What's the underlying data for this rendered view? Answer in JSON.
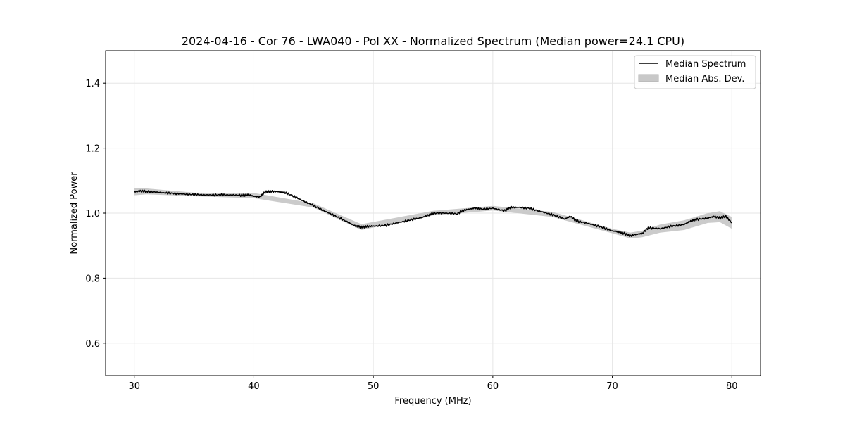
{
  "chart_data": {
    "type": "line",
    "title": "2024-04-16 - Cor 76 - LWA040 - Pol XX - Normalized Spectrum (Median power=24.1 CPU)",
    "xlabel": "Frequency (MHz)",
    "ylabel": "Normalized Power",
    "xlim": [
      27.6,
      82.4
    ],
    "ylim": [
      0.5,
      1.5
    ],
    "xticks": [
      30,
      40,
      50,
      60,
      70,
      80
    ],
    "yticks": [
      0.6,
      0.8,
      1.0,
      1.2,
      1.4
    ],
    "grid": true,
    "legend_position": "top-right",
    "legend": [
      "Median Spectrum",
      "Median Abs. Dev."
    ],
    "series": [
      {
        "name": "Median Spectrum",
        "color": "#000000",
        "x": [
          30,
          30.5,
          31,
          32,
          33,
          34,
          35,
          36,
          37,
          38,
          39,
          39.5,
          40,
          40.5,
          41,
          41.5,
          42,
          42.5,
          43,
          44,
          45,
          46,
          47,
          48,
          48.5,
          49,
          49.5,
          50,
          51,
          52,
          53,
          54,
          54.5,
          55,
          56,
          57,
          57.5,
          58,
          58.5,
          59,
          60,
          61,
          61.5,
          62,
          63,
          64,
          65,
          66,
          66.5,
          67,
          68,
          69,
          70,
          70.5,
          71,
          71.5,
          72,
          72.5,
          73,
          74,
          75,
          76,
          76.5,
          77,
          78,
          78.5,
          79,
          79.5,
          80
        ],
        "y": [
          1.065,
          1.068,
          1.067,
          1.064,
          1.061,
          1.059,
          1.057,
          1.056,
          1.056,
          1.056,
          1.055,
          1.056,
          1.052,
          1.05,
          1.066,
          1.067,
          1.066,
          1.064,
          1.058,
          1.04,
          1.023,
          1.005,
          0.988,
          0.97,
          0.96,
          0.957,
          0.959,
          0.96,
          0.962,
          0.97,
          0.978,
          0.986,
          0.992,
          1.0,
          1.0,
          0.998,
          1.008,
          1.012,
          1.016,
          1.012,
          1.015,
          1.007,
          1.018,
          1.018,
          1.015,
          1.005,
          0.995,
          0.982,
          0.99,
          0.976,
          0.968,
          0.958,
          0.945,
          0.943,
          0.937,
          0.93,
          0.935,
          0.937,
          0.955,
          0.952,
          0.96,
          0.965,
          0.975,
          0.98,
          0.985,
          0.99,
          0.985,
          0.99,
          0.97
        ]
      },
      {
        "name": "Median Abs. Dev.",
        "color": "#c8c8c8",
        "x": [
          30,
          31,
          35,
          40,
          45,
          49,
          55,
          60,
          65,
          70,
          71.5,
          72.5,
          74,
          76,
          78,
          79,
          80
        ],
        "lower": [
          1.055,
          1.058,
          1.052,
          1.046,
          1.017,
          0.948,
          0.993,
          1.008,
          0.988,
          0.938,
          0.922,
          0.926,
          0.94,
          0.948,
          0.97,
          0.972,
          0.952
        ],
        "upper": [
          1.077,
          1.076,
          1.063,
          1.062,
          1.03,
          0.966,
          1.007,
          1.022,
          1.004,
          0.952,
          0.94,
          0.946,
          0.965,
          0.978,
          1.0,
          1.006,
          0.988
        ]
      }
    ]
  }
}
